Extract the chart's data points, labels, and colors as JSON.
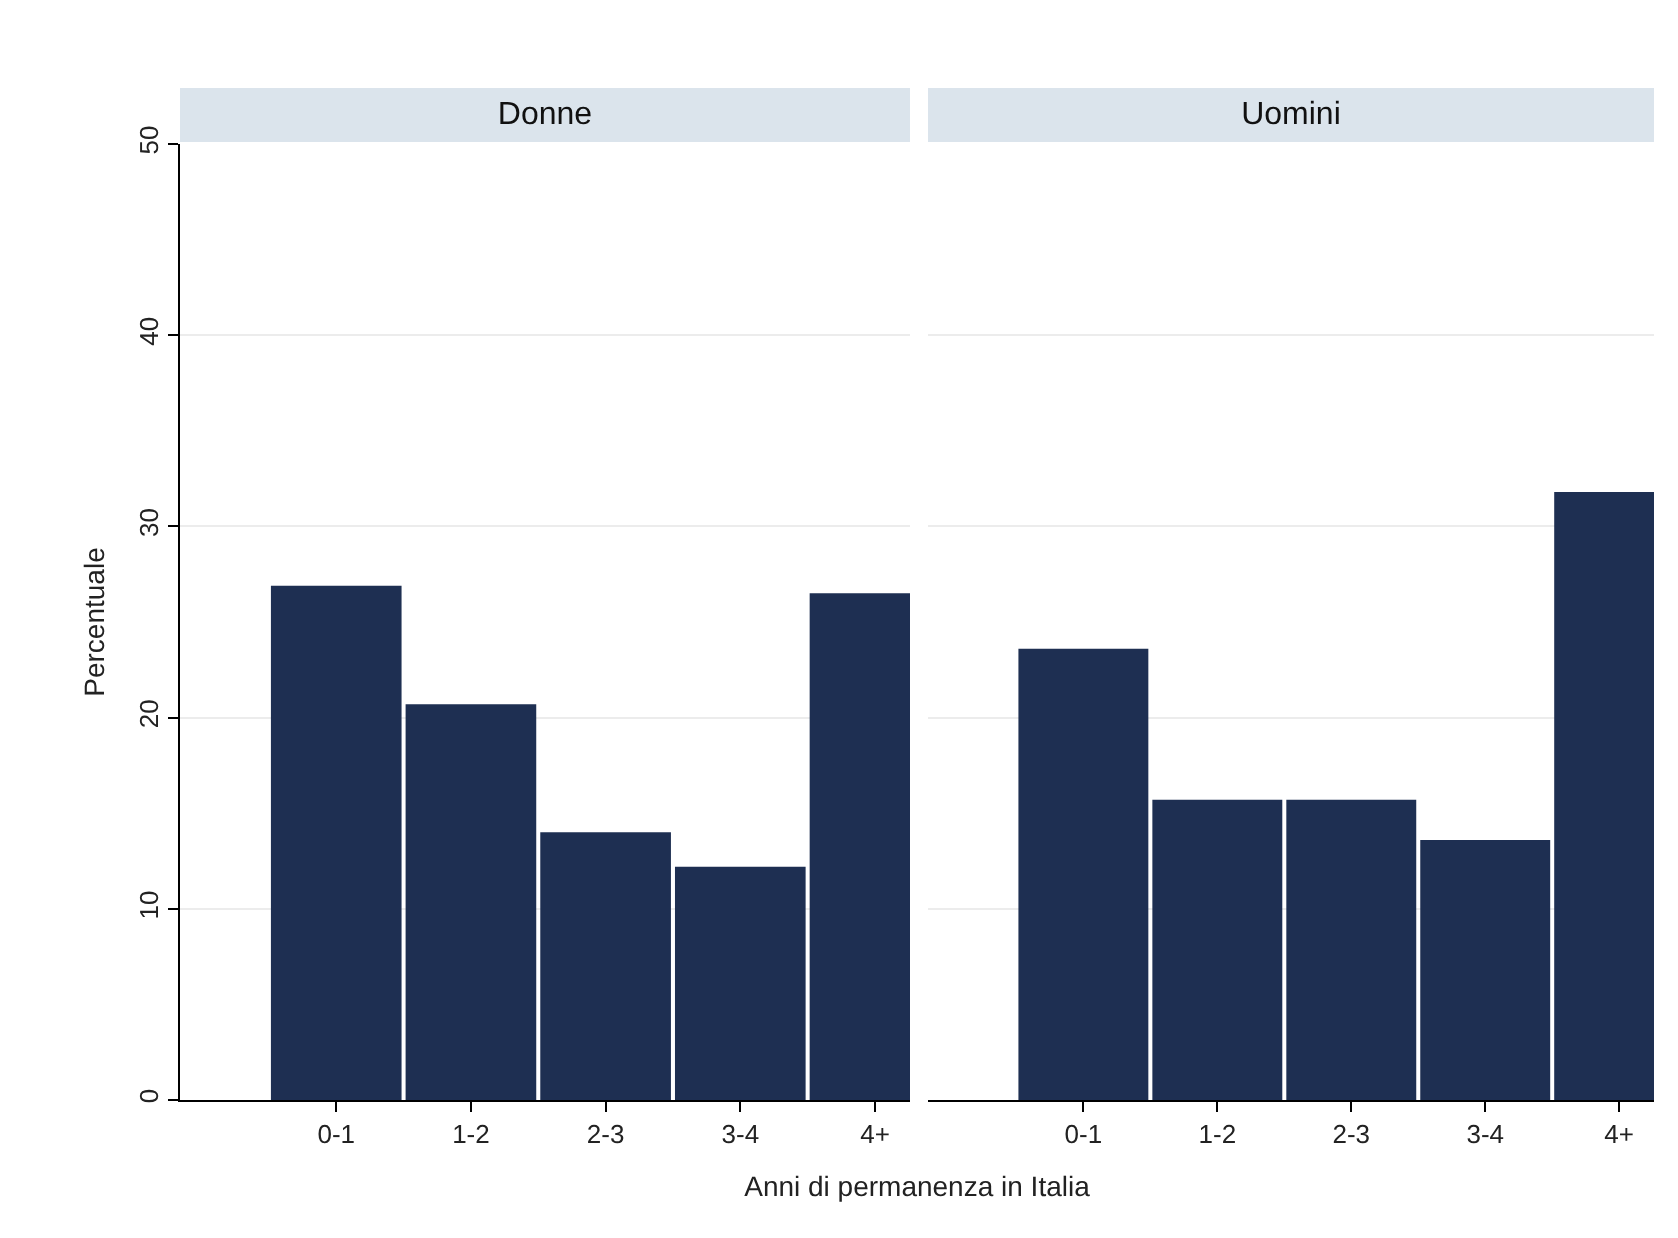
{
  "chart_data": [
    {
      "type": "bar",
      "title": "Donne",
      "xlabel": "Anni di permanenza in Italia",
      "ylabel": "Percentuale",
      "categories": [
        "0-1",
        "1-2",
        "2-3",
        "3-4",
        "4+"
      ],
      "values": [
        26.9,
        20.7,
        14.0,
        12.2,
        26.5
      ],
      "color": "#1e2f52",
      "ylim": [
        0,
        50
      ],
      "yticks": [
        0,
        10,
        20,
        30,
        40,
        50
      ],
      "grid": "y"
    },
    {
      "type": "bar",
      "title": "Uomini",
      "categories": [
        "0-1",
        "1-2",
        "2-3",
        "3-4",
        "4+"
      ],
      "values": [
        23.6,
        15.7,
        15.7,
        13.6,
        31.8
      ],
      "color": "#1e2f52",
      "ylim": [
        0,
        50
      ],
      "yticks": [
        0,
        10,
        20,
        30,
        40,
        50
      ],
      "grid": "y",
      "tick_labels": "x"
    }
  ]
}
